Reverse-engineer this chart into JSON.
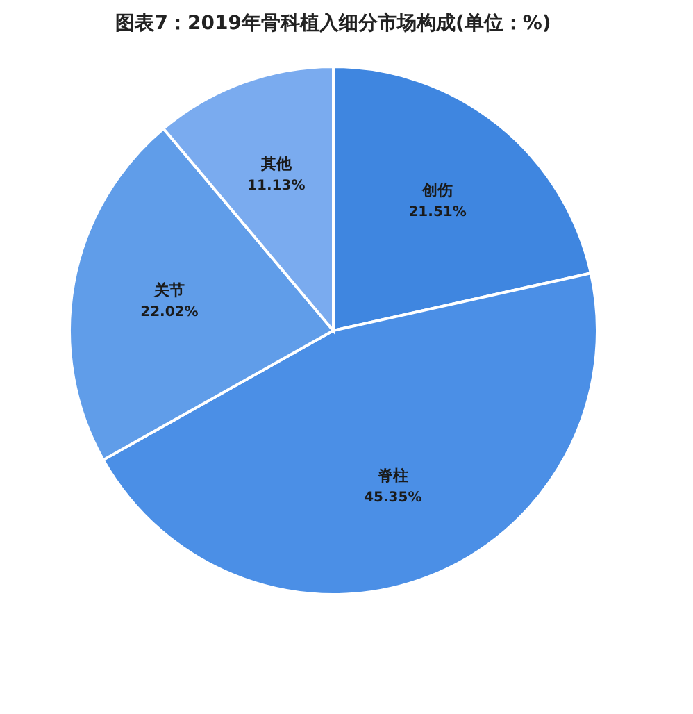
{
  "chart_data": {
    "type": "pie",
    "title": "图表7：2019年骨科植入细分市场构成(单位：%)",
    "categories": [
      "创伤",
      "脊柱",
      "关节",
      "其他"
    ],
    "values": [
      21.51,
      45.35,
      22.02,
      11.13
    ],
    "colors": [
      "#3f86e0",
      "#4b8fe6",
      "#609de9",
      "#7aabef"
    ],
    "value_labels": [
      "21.51%",
      "45.35%",
      "22.02%",
      "11.13%"
    ],
    "legend": false
  }
}
